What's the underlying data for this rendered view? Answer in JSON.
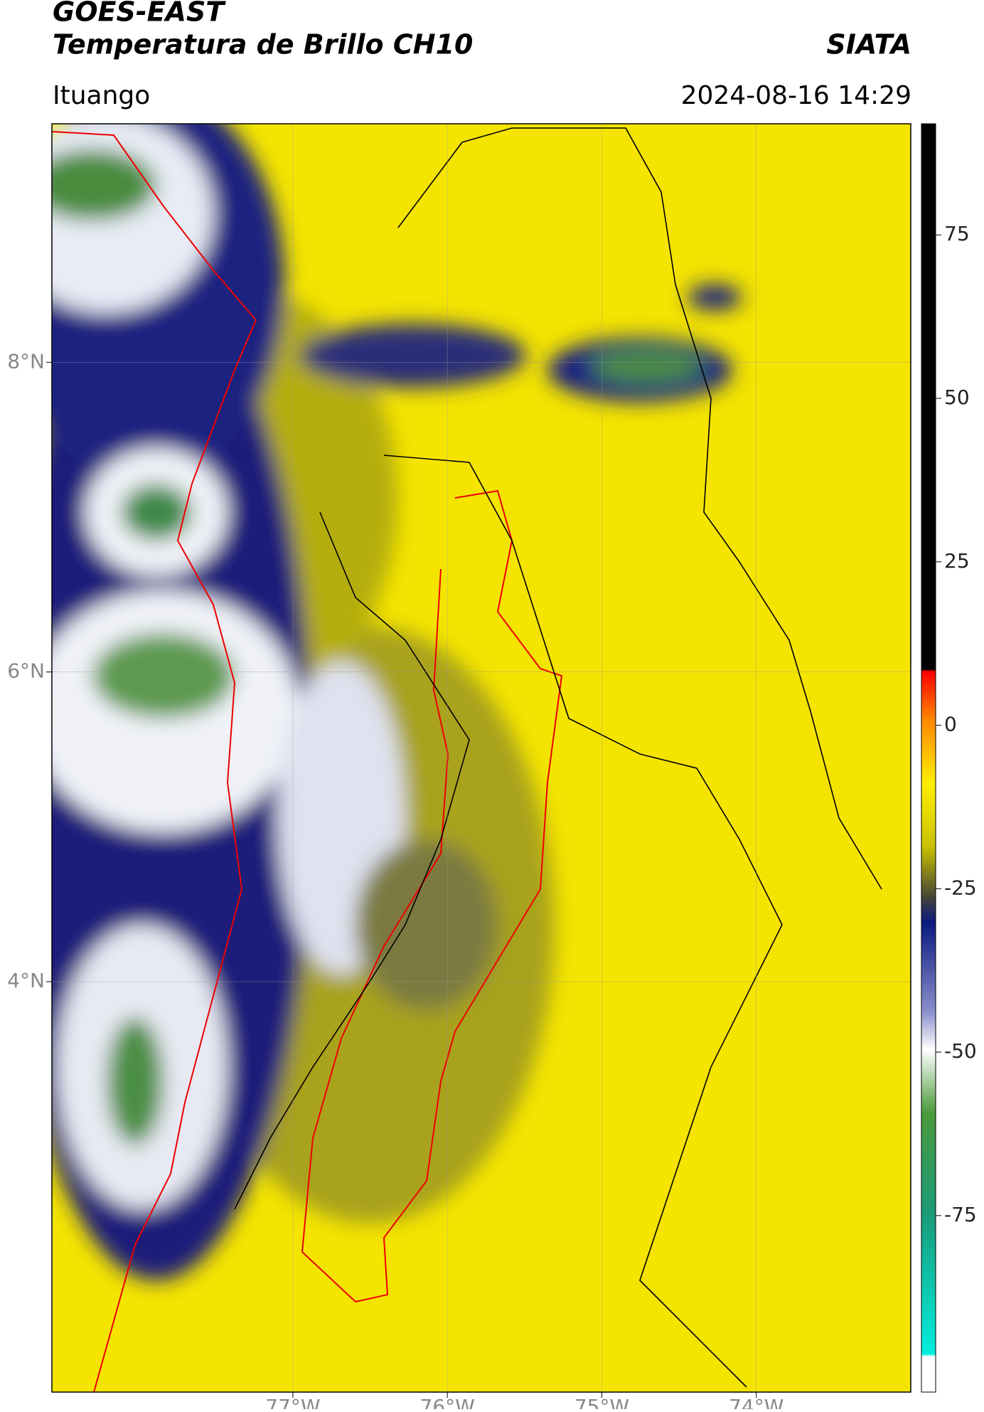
{
  "header": {
    "title": "GOES-EAST",
    "subtitle": "Temperatura de Brillo CH10",
    "source": "SIATA",
    "location": "Ituango",
    "datetime": "2024-08-16 14:29"
  },
  "map": {
    "lat_range": [
      1.35,
      9.54
    ],
    "lon_range": [
      -78.56,
      -73.0
    ],
    "lat_ticks": [
      {
        "value": 8,
        "label": "8°N"
      },
      {
        "value": 6,
        "label": "6°N"
      },
      {
        "value": 4,
        "label": "4°N"
      }
    ],
    "lon_ticks": [
      {
        "value": -77,
        "label": "77°W"
      },
      {
        "value": -76,
        "label": "76°W"
      },
      {
        "value": -75,
        "label": "75°W"
      },
      {
        "value": -74,
        "label": "74°W"
      }
    ]
  },
  "colorbar": {
    "range": [
      -102,
      92
    ],
    "ticks": [
      75,
      50,
      25,
      0,
      -25,
      -50,
      -75
    ]
  }
}
